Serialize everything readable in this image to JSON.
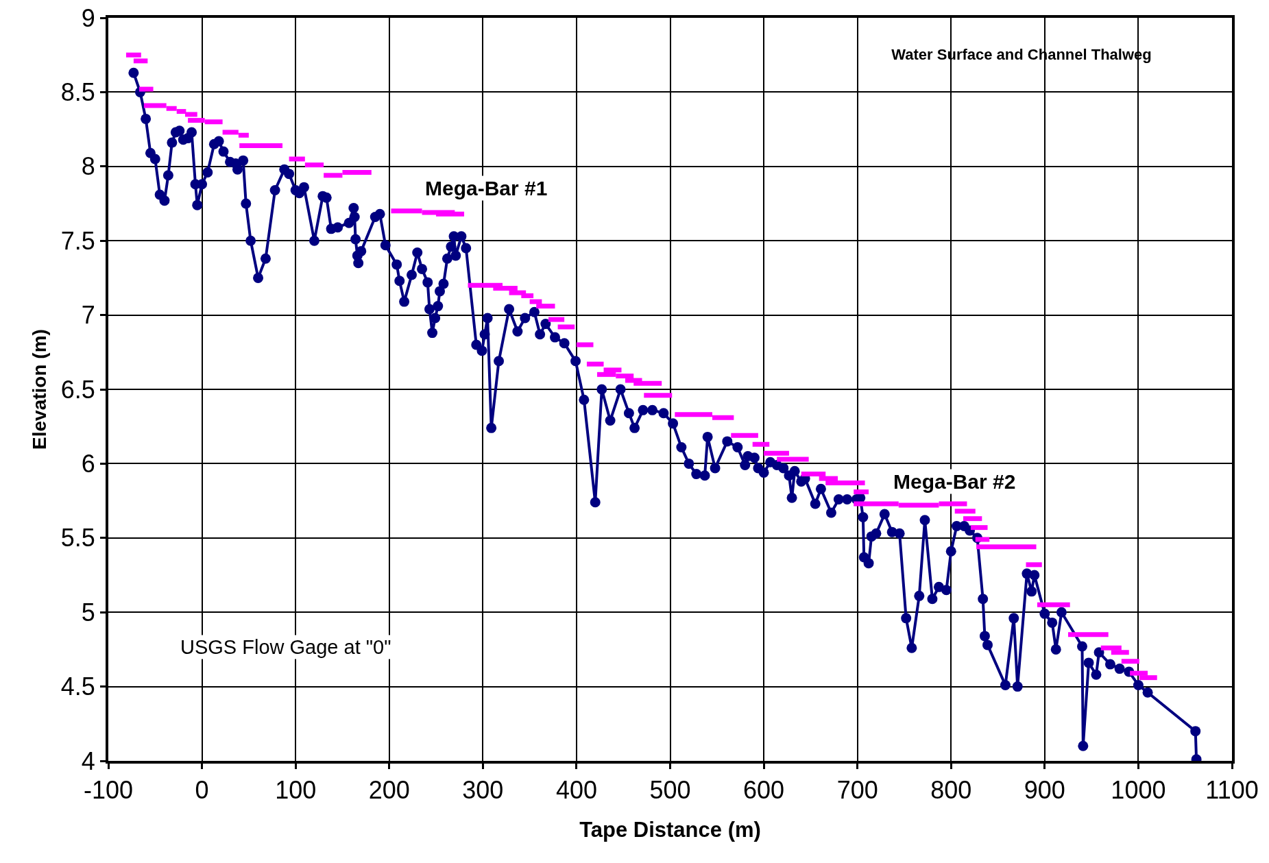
{
  "chart_data": {
    "type": "line",
    "title": "Water Surface and Channel Thalweg",
    "xlabel": "Tape Distance (m)",
    "ylabel": "Elevation (m)",
    "xlim": [
      -100,
      1100
    ],
    "xticks": [
      -100,
      0,
      100,
      200,
      300,
      400,
      500,
      600,
      700,
      800,
      900,
      1000,
      1100
    ],
    "ylim": [
      4,
      9
    ],
    "yticks": [
      4,
      4.5,
      5,
      5.5,
      6,
      6.5,
      7,
      7.5,
      8,
      8.5,
      9
    ],
    "grid": true,
    "annotations": [
      "Mega-Bar #1",
      "Mega-Bar #2",
      "USGS Flow Gage at \"0\""
    ],
    "series": [
      {
        "color": "#000080",
        "marker": "circle",
        "line_style": "solid",
        "x": [
          -73,
          -66,
          -60,
          -55,
          -50,
          -45,
          -40,
          -36,
          -32,
          -28,
          -24,
          -20,
          -15,
          -11,
          -7,
          -5,
          0,
          6,
          13,
          18,
          23,
          30,
          36,
          38,
          44,
          47,
          52,
          60,
          68,
          78,
          88,
          93,
          100,
          104,
          109,
          120,
          129,
          133,
          138,
          145,
          157,
          162,
          163,
          164,
          166,
          167,
          170,
          185,
          190,
          196,
          208,
          211,
          216,
          224,
          230,
          235,
          241,
          243,
          246,
          249,
          252,
          254,
          258,
          262,
          266,
          269,
          271,
          277,
          282,
          293,
          299,
          302,
          305,
          309,
          317,
          328,
          337,
          345,
          355,
          361,
          367,
          377,
          387,
          399,
          408,
          420,
          427,
          436,
          447,
          456,
          462,
          471,
          481,
          493,
          503,
          512,
          520,
          528,
          537,
          540,
          548,
          561,
          572,
          580,
          583,
          590,
          594,
          600,
          607,
          614,
          621,
          627,
          630,
          633,
          640,
          644,
          655,
          661,
          672,
          680,
          689,
          699,
          703,
          706,
          707,
          712,
          715,
          720,
          729,
          737,
          745,
          752,
          758,
          766,
          772,
          780,
          787,
          795,
          800,
          806,
          814,
          820,
          828,
          834,
          836,
          839,
          858,
          867,
          871,
          881,
          886,
          889,
          900,
          908,
          912,
          918,
          940,
          941,
          947,
          955,
          958,
          970,
          980,
          990,
          1000,
          1010,
          1061,
          1062
        ],
        "values": [
          8.63,
          8.5,
          8.32,
          8.09,
          8.05,
          7.81,
          7.77,
          7.94,
          8.16,
          8.23,
          8.24,
          8.18,
          8.19,
          8.23,
          7.88,
          7.74,
          7.88,
          7.96,
          8.15,
          8.17,
          8.1,
          8.03,
          8.02,
          7.98,
          8.04,
          7.75,
          7.5,
          7.25,
          7.38,
          7.84,
          7.98,
          7.95,
          7.84,
          7.82,
          7.86,
          7.5,
          7.8,
          7.79,
          7.58,
          7.59,
          7.62,
          7.72,
          7.66,
          7.51,
          7.4,
          7.35,
          7.43,
          7.66,
          7.68,
          7.47,
          7.34,
          7.23,
          7.09,
          7.27,
          7.42,
          7.31,
          7.22,
          7.04,
          6.88,
          6.98,
          7.06,
          7.16,
          7.21,
          7.38,
          7.46,
          7.53,
          7.4,
          7.53,
          7.45,
          6.8,
          6.76,
          6.87,
          6.98,
          6.24,
          6.69,
          7.04,
          6.89,
          6.98,
          7.02,
          6.87,
          6.94,
          6.85,
          6.81,
          6.69,
          6.43,
          5.74,
          6.5,
          6.29,
          6.5,
          6.34,
          6.24,
          6.36,
          6.36,
          6.34,
          6.27,
          6.11,
          6.0,
          5.93,
          5.92,
          6.18,
          5.97,
          6.15,
          6.11,
          5.99,
          6.05,
          6.04,
          5.97,
          5.94,
          6.01,
          5.99,
          5.97,
          5.92,
          5.77,
          5.95,
          5.88,
          5.9,
          5.73,
          5.83,
          5.67,
          5.76,
          5.76,
          5.76,
          5.77,
          5.64,
          5.37,
          5.33,
          5.51,
          5.53,
          5.66,
          5.54,
          5.53,
          4.96,
          4.76,
          5.11,
          5.62,
          5.09,
          5.17,
          5.15,
          5.41,
          5.58,
          5.58,
          5.55,
          5.5,
          5.09,
          4.84,
          4.78,
          4.51,
          4.96,
          4.5,
          5.26,
          5.14,
          5.25,
          4.99,
          4.93,
          4.75,
          5.0,
          4.77,
          4.1,
          4.66,
          4.58,
          4.73,
          4.65,
          4.62,
          4.6,
          4.51,
          4.46,
          4.2,
          4.01
        ]
      },
      {
        "color": "#ff00ff",
        "marker": "none",
        "line_style": "solid",
        "x": [
          -81,
          -65,
          null,
          -73,
          -58,
          null,
          -67,
          -52,
          null,
          -62,
          -38,
          null,
          -38,
          -27,
          null,
          -27,
          -17,
          null,
          -18,
          -5,
          null,
          -15,
          3,
          null,
          3,
          22,
          null,
          22,
          39,
          null,
          39,
          50,
          null,
          40,
          86,
          null,
          93,
          110,
          null,
          110,
          130,
          null,
          130,
          150,
          null,
          150,
          181,
          null,
          202,
          235,
          null,
          235,
          270,
          null,
          250,
          280,
          null,
          284,
          321,
          null,
          311,
          337,
          null,
          328,
          346,
          null,
          341,
          354,
          null,
          350,
          363,
          null,
          357,
          377,
          null,
          370,
          387,
          null,
          380,
          398,
          null,
          400,
          418,
          null,
          411,
          429,
          null,
          422,
          442,
          null,
          429,
          448,
          null,
          442,
          461,
          null,
          452,
          470,
          null,
          461,
          491,
          null,
          472,
          502,
          null,
          505,
          545,
          null,
          545,
          568,
          null,
          565,
          594,
          null,
          588,
          606,
          null,
          600,
          627,
          null,
          614,
          648,
          null,
          640,
          666,
          null,
          659,
          679,
          null,
          666,
          708,
          null,
          696,
          712,
          null,
          696,
          744,
          null,
          744,
          787,
          null,
          787,
          817,
          null,
          804,
          826,
          null,
          813,
          833,
          null,
          821,
          839,
          null,
          826,
          841,
          null,
          827,
          891,
          null,
          880,
          897,
          null,
          892,
          927,
          null,
          925,
          968,
          null,
          960,
          982,
          null,
          971,
          990,
          null,
          982,
          1001,
          null,
          991,
          1010,
          null,
          1001,
          1020
        ],
        "values": [
          8.75,
          8.75,
          null,
          8.71,
          8.71,
          null,
          8.52,
          8.52,
          null,
          8.41,
          8.41,
          null,
          8.39,
          8.39,
          null,
          8.37,
          8.37,
          null,
          8.35,
          8.35,
          null,
          8.31,
          8.31,
          null,
          8.3,
          8.3,
          null,
          8.23,
          8.23,
          null,
          8.21,
          8.21,
          null,
          8.14,
          8.14,
          null,
          8.05,
          8.05,
          null,
          8.01,
          8.01,
          null,
          7.94,
          7.94,
          null,
          7.96,
          7.96,
          null,
          7.7,
          7.7,
          null,
          7.69,
          7.69,
          null,
          7.68,
          7.68,
          null,
          7.2,
          7.2,
          null,
          7.18,
          7.18,
          null,
          7.15,
          7.15,
          null,
          7.13,
          7.13,
          null,
          7.09,
          7.09,
          null,
          7.06,
          7.06,
          null,
          6.97,
          6.97,
          null,
          6.92,
          6.92,
          null,
          6.8,
          6.8,
          null,
          6.67,
          6.67,
          null,
          6.6,
          6.6,
          null,
          6.63,
          6.63,
          null,
          6.59,
          6.59,
          null,
          6.56,
          6.56,
          null,
          6.54,
          6.54,
          null,
          6.46,
          6.46,
          null,
          6.33,
          6.33,
          null,
          6.31,
          6.31,
          null,
          6.19,
          6.19,
          null,
          6.13,
          6.13,
          null,
          6.07,
          6.07,
          null,
          6.03,
          6.03,
          null,
          5.93,
          5.93,
          null,
          5.9,
          5.9,
          null,
          5.87,
          5.87,
          null,
          5.81,
          5.81,
          null,
          5.73,
          5.73,
          null,
          5.72,
          5.72,
          null,
          5.73,
          5.73,
          null,
          5.68,
          5.68,
          null,
          5.63,
          5.63,
          null,
          5.57,
          5.57,
          null,
          5.49,
          5.49,
          null,
          5.44,
          5.44,
          null,
          5.32,
          5.32,
          null,
          5.05,
          5.05,
          null,
          4.85,
          4.85,
          null,
          4.76,
          4.76,
          null,
          4.73,
          4.73,
          null,
          4.67,
          4.67,
          null,
          4.59,
          4.59,
          null,
          4.56,
          4.56
        ]
      }
    ]
  }
}
